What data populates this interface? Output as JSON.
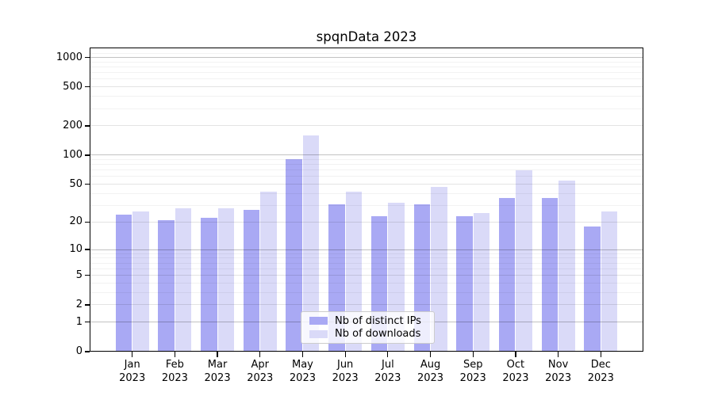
{
  "title": "spqnData 2023",
  "chart_data": {
    "type": "bar",
    "title": "spqnData 2023",
    "categories": [
      "Jan 2023",
      "Feb 2023",
      "Mar 2023",
      "Apr 2023",
      "May 2023",
      "Jun 2023",
      "Jul 2023",
      "Aug 2023",
      "Sep 2023",
      "Oct 2023",
      "Nov 2023",
      "Dec 2023"
    ],
    "series": [
      {
        "name": "Nb of distinct IPs",
        "color": "#a9a9f4",
        "values": [
          24,
          21,
          22,
          27,
          91,
          31,
          23,
          31,
          23,
          36,
          36,
          18
        ]
      },
      {
        "name": "Nb of downloads",
        "color": "#dadaf8",
        "values": [
          26,
          28,
          28,
          42,
          160,
          42,
          32,
          47,
          25,
          70,
          55,
          26
        ]
      }
    ],
    "xlabel": "",
    "ylabel": "",
    "yscale": "log10(1+v)",
    "ylim": [
      0,
      1265
    ],
    "yticks": [
      0,
      1,
      2,
      5,
      10,
      20,
      50,
      100,
      200,
      500,
      1000
    ],
    "ytick_labels": [
      "0",
      "1",
      "2",
      "5",
      "10",
      "20",
      "50",
      "100",
      "200",
      "500",
      "1000"
    ],
    "major_gridline_values": [
      1,
      10,
      100,
      1000
    ],
    "sub_gridline_values": [
      2,
      5,
      20,
      50,
      200,
      500
    ],
    "minor_gridline_values": [
      3,
      4,
      6,
      7,
      8,
      9,
      30,
      40,
      60,
      70,
      80,
      90,
      300,
      400,
      600,
      700,
      800,
      900,
      1100,
      1200
    ],
    "grid": "on",
    "legend_position": "lower center-right inside plot",
    "background": "#ffffff",
    "text_color": "#000000"
  }
}
